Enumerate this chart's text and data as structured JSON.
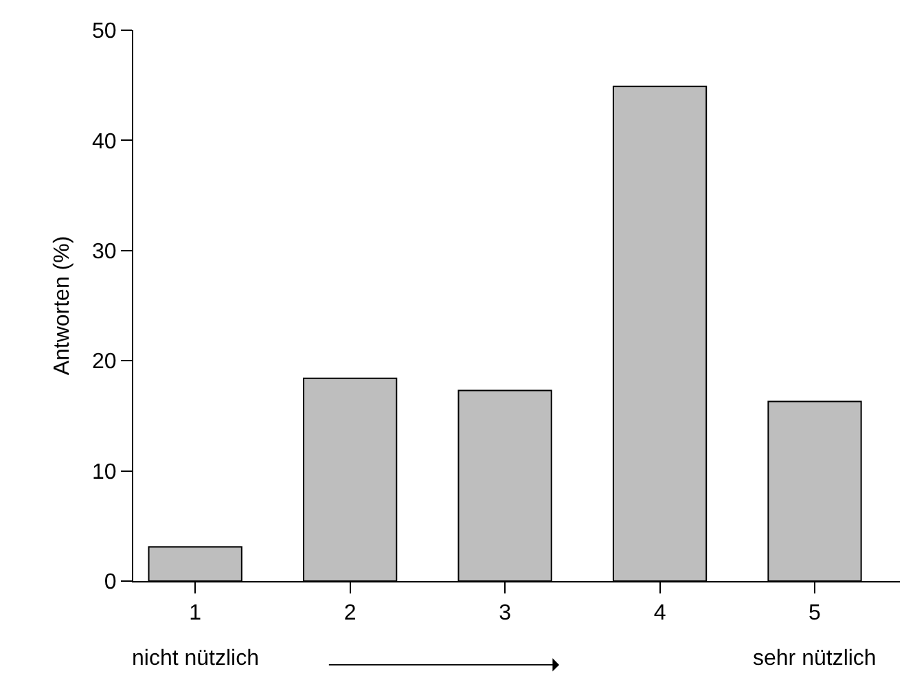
{
  "chart_data": {
    "type": "bar",
    "ylabel": "Antworten (%)",
    "categories": [
      "1",
      "2",
      "3",
      "4",
      "5"
    ],
    "values": [
      3.1,
      18.4,
      17.3,
      44.9,
      16.3
    ],
    "color": "#bebebe",
    "ylim": [
      0,
      50
    ],
    "yticks": [
      0,
      10,
      20,
      30,
      40,
      50
    ],
    "legend": false,
    "annotations": [
      "nicht nützlich",
      "sehr nützlich"
    ]
  }
}
